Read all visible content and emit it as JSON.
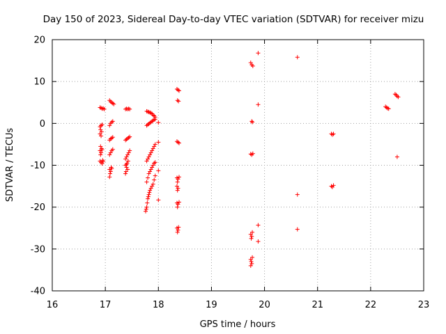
{
  "chart_data": {
    "type": "scatter",
    "title": "Day 150 of 2023, Sidereal Day-to-day VTEC variation (SDTVAR) for receiver mizu",
    "xlabel": "GPS time / hours",
    "ylabel": "SDTVAR / TECUs",
    "xlim": [
      16,
      23
    ],
    "ylim": [
      -40,
      20
    ],
    "xticks": [
      "16",
      "17",
      "18",
      "19",
      "20",
      "21",
      "22",
      "23"
    ],
    "yticks": [
      "20",
      "10",
      "0",
      "-10",
      "-20",
      "-30",
      "-40"
    ],
    "grid": true,
    "marker": "+",
    "color": "#ff0000",
    "series": [
      {
        "name": "SDTVAR",
        "points": [
          [
            16.9,
            3.8
          ],
          [
            16.92,
            3.7
          ],
          [
            16.94,
            3.5
          ],
          [
            16.96,
            3.6
          ],
          [
            16.98,
            3.4
          ],
          [
            16.9,
            -0.8
          ],
          [
            16.92,
            -0.5
          ],
          [
            16.94,
            -0.3
          ],
          [
            16.91,
            -1.5
          ],
          [
            16.93,
            -2.0
          ],
          [
            16.9,
            -2.5
          ],
          [
            16.92,
            -3.0
          ],
          [
            16.91,
            -5.5
          ],
          [
            16.93,
            -6.0
          ],
          [
            16.9,
            -6.5
          ],
          [
            16.92,
            -7.0
          ],
          [
            16.91,
            -7.5
          ],
          [
            16.94,
            -6.3
          ],
          [
            16.9,
            -9.0
          ],
          [
            16.92,
            -9.3
          ],
          [
            16.94,
            -9.6
          ],
          [
            16.96,
            -9.1
          ],
          [
            16.95,
            -8.8
          ],
          [
            17.08,
            5.5
          ],
          [
            17.1,
            5.2
          ],
          [
            17.12,
            5.0
          ],
          [
            17.14,
            4.8
          ],
          [
            17.16,
            4.6
          ],
          [
            17.08,
            -0.5
          ],
          [
            17.1,
            0.0
          ],
          [
            17.12,
            0.3
          ],
          [
            17.14,
            0.5
          ],
          [
            17.08,
            -4.0
          ],
          [
            17.1,
            -3.7
          ],
          [
            17.12,
            -3.5
          ],
          [
            17.14,
            -3.3
          ],
          [
            17.08,
            -7.5
          ],
          [
            17.1,
            -7.0
          ],
          [
            17.12,
            -6.5
          ],
          [
            17.14,
            -6.2
          ],
          [
            17.08,
            -11.0
          ],
          [
            17.1,
            -11.5
          ],
          [
            17.12,
            -10.8
          ],
          [
            17.09,
            -12.0
          ],
          [
            17.08,
            -12.8
          ],
          [
            17.11,
            -10.5
          ],
          [
            17.38,
            3.4
          ],
          [
            17.4,
            3.5
          ],
          [
            17.42,
            3.4
          ],
          [
            17.44,
            3.5
          ],
          [
            17.46,
            3.4
          ],
          [
            17.38,
            -4.0
          ],
          [
            17.4,
            -3.8
          ],
          [
            17.42,
            -3.6
          ],
          [
            17.44,
            -3.4
          ],
          [
            17.46,
            -3.2
          ],
          [
            17.38,
            -8.5
          ],
          [
            17.4,
            -8.0
          ],
          [
            17.42,
            -7.5
          ],
          [
            17.44,
            -7.0
          ],
          [
            17.46,
            -6.5
          ],
          [
            17.38,
            -10.0
          ],
          [
            17.4,
            -10.5
          ],
          [
            17.42,
            -11.0
          ],
          [
            17.39,
            -11.5
          ],
          [
            17.38,
            -12.0
          ],
          [
            17.41,
            -9.5
          ],
          [
            17.43,
            -9.0
          ],
          [
            17.4,
            -9.8
          ],
          [
            17.78,
            2.9
          ],
          [
            17.8,
            2.8
          ],
          [
            17.82,
            2.7
          ],
          [
            17.84,
            2.6
          ],
          [
            17.86,
            2.5
          ],
          [
            17.88,
            2.3
          ],
          [
            17.9,
            2.0
          ],
          [
            17.92,
            1.8
          ],
          [
            17.94,
            1.5
          ],
          [
            17.78,
            -0.5
          ],
          [
            17.8,
            -0.3
          ],
          [
            17.82,
            -0.1
          ],
          [
            17.84,
            0.1
          ],
          [
            17.86,
            0.3
          ],
          [
            17.88,
            0.5
          ],
          [
            17.9,
            0.7
          ],
          [
            17.92,
            0.9
          ],
          [
            17.94,
            1.0
          ],
          [
            17.78,
            -9.0
          ],
          [
            17.8,
            -8.5
          ],
          [
            17.82,
            -8.0
          ],
          [
            17.84,
            -7.5
          ],
          [
            17.86,
            -7.0
          ],
          [
            17.88,
            -6.5
          ],
          [
            17.9,
            -6.0
          ],
          [
            17.92,
            -5.5
          ],
          [
            17.94,
            -5.0
          ],
          [
            17.78,
            -14.0
          ],
          [
            17.8,
            -13.0
          ],
          [
            17.82,
            -12.0
          ],
          [
            17.84,
            -11.5
          ],
          [
            17.86,
            -11.0
          ],
          [
            17.88,
            -10.5
          ],
          [
            17.9,
            -10.0
          ],
          [
            17.92,
            -9.5
          ],
          [
            17.94,
            -9.3
          ],
          [
            17.76,
            -21.0
          ],
          [
            17.77,
            -20.5
          ],
          [
            17.78,
            -20.0
          ],
          [
            17.79,
            -19.0
          ],
          [
            17.8,
            -18.0
          ],
          [
            17.81,
            -17.5
          ],
          [
            17.82,
            -17.0
          ],
          [
            17.83,
            -16.5
          ],
          [
            17.84,
            -16.0
          ],
          [
            17.86,
            -15.5
          ],
          [
            17.88,
            -15.0
          ],
          [
            17.9,
            -14.5
          ],
          [
            17.92,
            -13.5
          ],
          [
            17.94,
            -12.5
          ],
          [
            18.0,
            0.2
          ],
          [
            18.0,
            -4.5
          ],
          [
            18.0,
            -11.3
          ],
          [
            18.0,
            -18.3
          ],
          [
            18.35,
            8.2
          ],
          [
            18.37,
            8.0
          ],
          [
            18.39,
            7.8
          ],
          [
            18.36,
            5.5
          ],
          [
            18.38,
            5.3
          ],
          [
            18.35,
            -4.3
          ],
          [
            18.37,
            -4.5
          ],
          [
            18.39,
            -4.7
          ],
          [
            18.35,
            -13.0
          ],
          [
            18.37,
            -13.3
          ],
          [
            18.39,
            -12.8
          ],
          [
            18.36,
            -14.0
          ],
          [
            18.35,
            -15.0
          ],
          [
            18.37,
            -15.5
          ],
          [
            18.36,
            -16.0
          ],
          [
            18.35,
            -19.0
          ],
          [
            18.37,
            -19.3
          ],
          [
            18.39,
            -18.8
          ],
          [
            18.36,
            -20.0
          ],
          [
            18.35,
            -25.0
          ],
          [
            18.37,
            -25.5
          ],
          [
            18.36,
            -26.0
          ],
          [
            18.38,
            -24.8
          ],
          [
            19.74,
            14.5
          ],
          [
            19.76,
            14.0
          ],
          [
            19.78,
            13.7
          ],
          [
            19.76,
            0.5
          ],
          [
            19.77,
            0.3
          ],
          [
            19.74,
            -7.3
          ],
          [
            19.76,
            -7.5
          ],
          [
            19.78,
            -7.2
          ],
          [
            19.74,
            -26.5
          ],
          [
            19.76,
            -27.0
          ],
          [
            19.75,
            -27.5
          ],
          [
            19.77,
            -26.0
          ],
          [
            19.74,
            -32.5
          ],
          [
            19.75,
            -33.0
          ],
          [
            19.76,
            -33.5
          ],
          [
            19.74,
            -34.0
          ],
          [
            19.77,
            -32.0
          ],
          [
            19.88,
            16.8
          ],
          [
            19.88,
            4.5
          ],
          [
            19.88,
            -24.3
          ],
          [
            19.88,
            -28.2
          ],
          [
            20.62,
            15.8
          ],
          [
            20.62,
            -17.0
          ],
          [
            20.62,
            -25.3
          ],
          [
            21.26,
            -2.5
          ],
          [
            21.28,
            -2.7
          ],
          [
            21.3,
            -2.5
          ],
          [
            21.26,
            -15.0
          ],
          [
            21.28,
            -15.2
          ],
          [
            21.3,
            -14.8
          ],
          [
            22.28,
            4.0
          ],
          [
            22.3,
            3.8
          ],
          [
            22.32,
            3.6
          ],
          [
            22.34,
            3.5
          ],
          [
            22.46,
            7.0
          ],
          [
            22.48,
            6.8
          ],
          [
            22.5,
            6.5
          ],
          [
            22.52,
            6.3
          ],
          [
            22.5,
            -8.0
          ]
        ]
      }
    ]
  }
}
